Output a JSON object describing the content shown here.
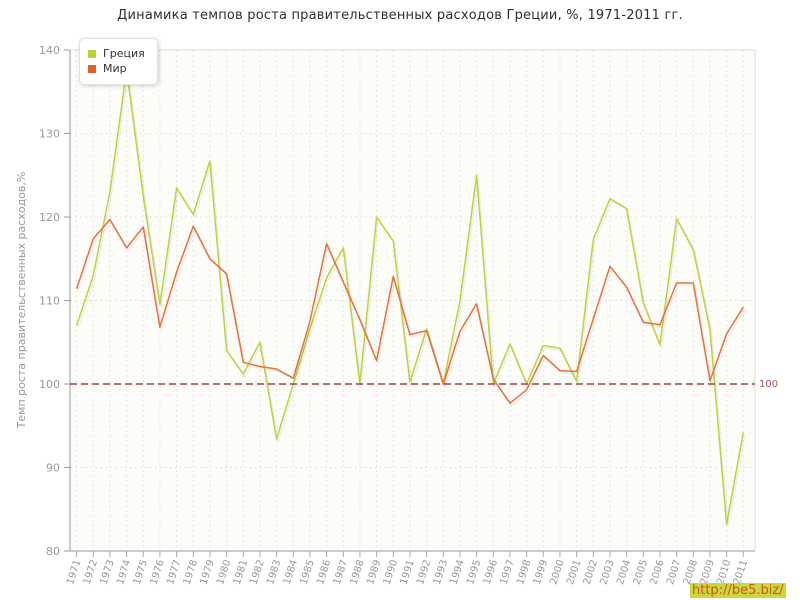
{
  "title": "Динамика темпов роста правительственных расходов Греции, %, 1971-2011 гг.",
  "watermark": {
    "text": "http://be5.biz/",
    "text_color": "#e04b1f",
    "background_color": "#c6d93f"
  },
  "legend": {
    "position": "top-left",
    "items": [
      {
        "label": "Греция",
        "color": "#b9d32f"
      },
      {
        "label": "Мир",
        "color": "#df5f28"
      }
    ]
  },
  "reference_line": {
    "y": 100,
    "label": "100",
    "color": "#a04040",
    "label_color": "#aa5555"
  },
  "axes": {
    "y_title": "Темп роста правительственных расходов,%",
    "tick_color": "#999999",
    "grid_color": "#e4e4e4",
    "plot_background": "#fcfcf9"
  },
  "chart_data": {
    "type": "line",
    "title": "Динамика темпов роста правительственных расходов Греции, %, 1971-2011 гг.",
    "xlabel": "",
    "ylabel": "Темп роста правительственных расходов,%",
    "ylim": [
      80,
      140
    ],
    "yticks": [
      80,
      90,
      100,
      110,
      120,
      130,
      140
    ],
    "grid": true,
    "legend_position": "top-left",
    "x": [
      1971,
      1972,
      1973,
      1974,
      1975,
      1976,
      1977,
      1978,
      1979,
      1980,
      1981,
      1982,
      1983,
      1984,
      1985,
      1986,
      1987,
      1988,
      1989,
      1990,
      1991,
      1992,
      1993,
      1994,
      1995,
      1996,
      1997,
      1998,
      1999,
      2000,
      2001,
      2002,
      2003,
      2004,
      2005,
      2006,
      2007,
      2008,
      2009,
      2010,
      2011
    ],
    "series": [
      {
        "name": "Греция",
        "color": "#bdd23f",
        "values": [
          107,
          113,
          123,
          137.6,
          122.5,
          109.5,
          123.5,
          120.3,
          126.7,
          104,
          101.2,
          105,
          93.4,
          100,
          106.6,
          112.7,
          116.3,
          100,
          120,
          117.1,
          100.2,
          106.6,
          100,
          110,
          125,
          100,
          104.8,
          100,
          104.6,
          104.3,
          100.3,
          117.3,
          122.2,
          121,
          109.7,
          104.7,
          119.8,
          116.1,
          106.5,
          83.2,
          94.2
        ]
      },
      {
        "name": "Мир",
        "color": "#e4713e",
        "values": [
          111.4,
          117.4,
          119.7,
          116.3,
          118.8,
          106.8,
          113.4,
          118.9,
          115,
          113.2,
          102.6,
          102.1,
          101.8,
          100.7,
          107.5,
          116.8,
          112.2,
          107.7,
          102.8,
          112.9,
          105.9,
          106.4,
          100,
          106.3,
          109.6,
          100.6,
          97.7,
          99.3,
          103.4,
          101.6,
          101.5,
          107.8,
          114.1,
          111.6,
          107.4,
          107.1,
          112.1,
          112.1,
          100.4,
          106,
          109.2
        ]
      }
    ],
    "reference_line": {
      "y": 100,
      "label": "100"
    }
  }
}
